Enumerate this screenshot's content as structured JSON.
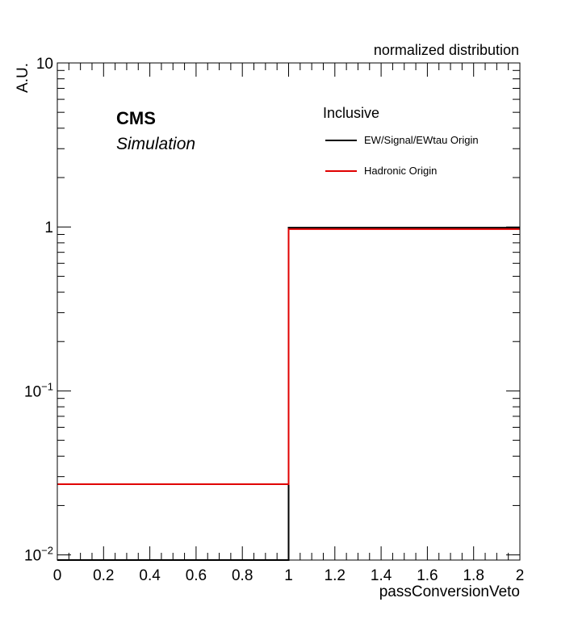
{
  "chart_data": {
    "type": "histogram-step",
    "title": "normalized distribution",
    "xlabel": "passConversionVeto",
    "ylabel": "A.U.",
    "xlim": [
      0,
      2
    ],
    "ylim": [
      0.0093,
      10
    ],
    "log_y": true,
    "x_ticks": [
      {
        "value": 0,
        "label": "0"
      },
      {
        "value": 0.2,
        "label": "0.2"
      },
      {
        "value": 0.4,
        "label": "0.4"
      },
      {
        "value": 0.6,
        "label": "0.6"
      },
      {
        "value": 0.8,
        "label": "0.8"
      },
      {
        "value": 1,
        "label": "1"
      },
      {
        "value": 1.2,
        "label": "1.2"
      },
      {
        "value": 1.4,
        "label": "1.4"
      },
      {
        "value": 1.6,
        "label": "1.6"
      },
      {
        "value": 1.8,
        "label": "1.8"
      },
      {
        "value": 2,
        "label": "2"
      }
    ],
    "y_ticks": [
      {
        "value": 0.01,
        "label": "10",
        "sup": "−2"
      },
      {
        "value": 0.1,
        "label": "10",
        "sup": "−1"
      },
      {
        "value": 1,
        "label": "1",
        "sup": ""
      },
      {
        "value": 10,
        "label": "10",
        "sup": ""
      }
    ],
    "bin_edges": [
      0,
      1,
      2
    ],
    "series": [
      {
        "name": "EW/Signal/EWtau Origin",
        "color": "#000000",
        "values": [
          0.0,
          0.99
        ]
      },
      {
        "name": "Hadronic Origin",
        "color": "#e00000",
        "values": [
          0.027,
          0.97
        ]
      }
    ],
    "legend_position": "top-right",
    "legend_header": "Inclusive",
    "labels": {
      "experiment": "CMS",
      "subtitle": "Simulation"
    },
    "grid": false
  }
}
